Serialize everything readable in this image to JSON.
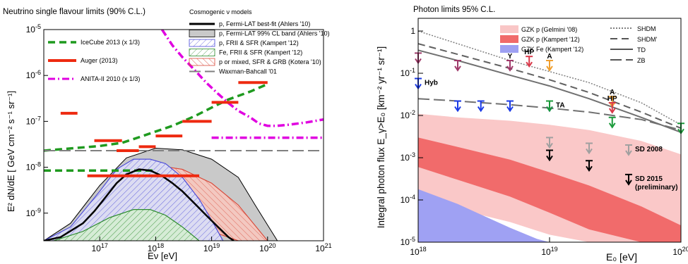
{
  "chart_data": [
    {
      "type": "line",
      "title": "Neutrino single flavour limits (90% C.L.)",
      "xlabel": "Eν [eV]",
      "ylabel": "E² dN/dE [ GeV cm⁻² s⁻¹ sr⁻¹]",
      "log_x": true,
      "log_y": true,
      "xlim": [
        1e+16,
        1e+21
      ],
      "ylim": [
        2.5e-10,
        1e-05
      ],
      "x_ticks": [
        {
          "v": 1e+17,
          "t": "10^17"
        },
        {
          "v": 1e+18,
          "t": "10^18"
        },
        {
          "v": 1e+19,
          "t": "10^19"
        },
        {
          "v": 1e+20,
          "t": "10^20"
        },
        {
          "v": 1e+21,
          "t": "10^21"
        }
      ],
      "y_ticks": [
        {
          "v": 1e-09,
          "t": "10^-9"
        },
        {
          "v": 1e-08,
          "t": "10^-8"
        },
        {
          "v": 1e-07,
          "t": "10^-7"
        },
        {
          "v": 1e-06,
          "t": "10^-6"
        },
        {
          "v": 1e-05,
          "t": "10^-5"
        }
      ],
      "legend_experiments": [
        "IceCube 2013 (x 1/3)",
        "Auger (2013)",
        "ANITA-II 2010 (x 1/3)"
      ],
      "legend_models_title": "Cosmogenic ν models",
      "legend_models": [
        "p, Fermi-LAT best-fit (Ahlers '10)",
        "p, Fermi-LAT 99% CL band (Ahlers '10)",
        "p, FRII & SFR (Kampert '12)",
        "Fe, FRII & SFR (Kampert '12)",
        "p or mixed, SFR & GRB (Kotera '10)",
        "Waxman-Bahcall '01"
      ],
      "series": [
        {
          "name": "IceCube 2013 (x 1/3)",
          "color": "#1f9a1f",
          "style": "dashed",
          "x": [
            1e+16,
            1e+17,
            2.5e+17,
            5e+17,
            1e+18,
            2e+18,
            5e+18,
            1e+19,
            2e+19,
            5e+19,
            1e+20
          ],
          "y": [
            2.3e-08,
            2.9e-08,
            3.4e-08,
            4.5e-08,
            6e-08,
            8e-08,
            1.3e-07,
            2e-07,
            3e-07,
            4.5e-07,
            6.5e-07
          ]
        },
        {
          "name": "IceCube 2013 (x 1/3)",
          "color": "#1f9a1f",
          "style": "dashed",
          "x": [
            1e+16,
            3e+16,
            1e+17,
            3e+17,
            1e+18
          ],
          "y": [
            8.5e-09,
            8.5e-09,
            8.5e-09,
            8.5e-09,
            8.5e-09
          ]
        },
        {
          "name": "ANITA-II 2010 (x 1/3)",
          "color": "#e000e0",
          "style": "dashdot",
          "x": [
            1.3e+18,
            2e+18,
            3e+18,
            5e+18,
            8e+18,
            1.3e+19,
            2e+19,
            3e+19,
            5e+19,
            7e+19,
            1e+20,
            1.5e+20,
            2.5e+20,
            5e+20,
            1e+21
          ],
          "y": [
            1e-05,
            4.5e-06,
            2.5e-06,
            1.3e-06,
            7e-07,
            4e-07,
            2.5e-07,
            1.7e-07,
            1.2e-07,
            9e-08,
            8e-08,
            8e-08,
            8.5e-08,
            9.5e-08,
            1.1e-07
          ]
        },
        {
          "name": "ANITA-II 2010 (x 1/3)",
          "color": "#e000e0",
          "style": "dashdot",
          "x": [
            1e+19,
            1e+21
          ],
          "y": [
            4.4e-08,
            4.4e-08
          ]
        },
        {
          "name": "Waxman-Bahcall '01",
          "color": "#808080",
          "style": "longdash",
          "x": [
            1e+16,
            1e+21
          ],
          "y": [
            2.3e-08,
            2.3e-08
          ]
        },
        {
          "name": "p, Fermi-LAT best-fit (Ahlers '10)",
          "color": "#000000",
          "style": "solid",
          "x": [
            1e+16,
            2e+16,
            5e+16,
            8e+16,
            1.3e+17,
            2e+17,
            3e+17,
            5e+17,
            8e+17,
            1.3e+18,
            2e+18,
            3e+18,
            5e+18,
            8e+18,
            1.3e+19,
            2e+19,
            2.5e+19
          ],
          "y": [
            2.5e-10,
            3e-10,
            6e-10,
            1.1e-09,
            2.3e-09,
            4.5e-09,
            7e-09,
            9e-09,
            8.5e-09,
            6.5e-09,
            4.5e-09,
            3e-09,
            1.6e-09,
            9e-10,
            5e-10,
            3e-10,
            2.5e-10
          ]
        }
      ],
      "bands": [
        {
          "name": "p, Fermi-LAT 99% CL band (Ahlers '10)",
          "fill": "#c9c9c9",
          "stroke": "#000000",
          "x": [
            1e+16,
            3e+16,
            1e+17,
            3e+17,
            1e+18,
            3e+18,
            1e+19,
            3e+19,
            6e+19,
            1.5e+20
          ],
          "upper": [
            2.5e-10,
            6e-10,
            4e-09,
            1.6e-08,
            2.6e-08,
            2.4e-08,
            1.5e-08,
            6e-09,
            1.5e-09,
            2.5e-10
          ],
          "lower": [
            2.5e-10,
            2.5e-10,
            2.5e-10,
            2.5e-10,
            2.5e-10,
            2.5e-10,
            2.5e-10,
            2.5e-10,
            2.5e-10,
            2.5e-10
          ]
        },
        {
          "name": "p or mixed, SFR & GRB (Kotera '10)",
          "fill": "#f3c8c0",
          "stroke": "#d94a3a",
          "x": [
            1e+16,
            3e+16,
            1e+17,
            3e+17,
            1e+18,
            3e+18,
            1e+19,
            3e+19,
            1e+20
          ],
          "upper": [
            2.5e-10,
            4e-10,
            3e-09,
            8e-09,
            1.1e-08,
            9e-09,
            4.5e-09,
            1.5e-09,
            2.5e-10
          ],
          "lower": [
            2.5e-10,
            2.5e-10,
            3e-10,
            6e-10,
            8e-10,
            6e-10,
            4e-10,
            2.5e-10,
            2.5e-10
          ]
        },
        {
          "name": "p, FRII & SFR (Kampert '12)",
          "fill": "#dcdcf2",
          "stroke": "#4a4ad9",
          "x": [
            1e+16,
            3e+16,
            1e+17,
            2e+17,
            4e+17,
            8e+17,
            1.5e+18,
            3e+18,
            6e+18,
            1e+19,
            1.6e+19
          ],
          "upper": [
            2.5e-10,
            5e-10,
            3e-09,
            9e-09,
            1.5e-08,
            1.5e-08,
            1.2e-08,
            6e-09,
            2e-09,
            7e-10,
            2.5e-10
          ],
          "lower": [
            2.5e-10,
            2.5e-10,
            2.5e-10,
            2.5e-10,
            2.5e-10,
            2.5e-10,
            2.5e-10,
            2.5e-10,
            2.5e-10,
            2.5e-10,
            2.5e-10
          ]
        },
        {
          "name": "Fe, FRII & SFR (Kampert '12)",
          "fill": "#d6ecd6",
          "stroke": "#2a8a2a",
          "x": [
            1.5e+16,
            5e+16,
            1.5e+17,
            4e+17,
            8e+17,
            1.5e+18,
            3e+18,
            6e+18
          ],
          "upper": [
            2.5e-10,
            4e-10,
            8e-10,
            1.2e-09,
            1.2e-09,
            9e-10,
            5e-10,
            2.5e-10
          ],
          "lower": [
            2.5e-10,
            2.5e-10,
            2.5e-10,
            2.5e-10,
            2.5e-10,
            2.5e-10,
            2.5e-10,
            2.5e-10
          ]
        }
      ],
      "segments": [
        {
          "name": "Auger (2013)",
          "color": "#ee2a10",
          "pts": [
            [
              2e+16,
              1.5e-07,
              4e+16
            ],
            [
              8e+16,
              3.8e-08,
              2.5e+17
            ],
            [
              2e+17,
              2.3e-08,
              5e+17
            ],
            [
              5e+17,
              2.8e-08,
              1e+18
            ],
            [
              1e+18,
              4.8e-08,
              3e+18
            ],
            [
              3e+18,
              1e-07,
              1e+19
            ],
            [
              1e+19,
              2.6e-07,
              3e+19
            ],
            [
              3e+19,
              7e-07,
              1e+20
            ],
            [
              6e+16,
              6.5e-09,
              6e+18
            ]
          ]
        }
      ]
    },
    {
      "type": "line",
      "title": "Photon limits 95% C.L.",
      "xlabel": "E₀ [eV]",
      "ylabel": "Integral photon flux E_γ>E₀ [km⁻² yr⁻¹ sr⁻¹]",
      "log_x": true,
      "log_y": true,
      "xlim": [
        1e+18,
        1e+20
      ],
      "ylim": [
        1e-05,
        2
      ],
      "x_ticks": [
        {
          "v": 1e+18,
          "t": "10^18"
        },
        {
          "v": 1e+19,
          "t": "10^19"
        },
        {
          "v": 1e+20,
          "t": "10^20"
        }
      ],
      "y_ticks": [
        {
          "v": 1e-05,
          "t": "10^-5"
        },
        {
          "v": 0.0001,
          "t": "10^-4"
        },
        {
          "v": 0.001,
          "t": "10^-3"
        },
        {
          "v": 0.01,
          "t": "10^-2"
        },
        {
          "v": 0.1,
          "t": "10^-1"
        },
        {
          "v": 1,
          "t": "1"
        }
      ],
      "legend_bands": [
        {
          "label": "GZK p (Gelmini '08)",
          "color": "#f9c6c6"
        },
        {
          "label": "GZK p (Kampert '12)",
          "color": "#f06a6a"
        },
        {
          "label": "GZK Fe (Kampert '12)",
          "color": "#9ea0f2"
        }
      ],
      "legend_lines": [
        {
          "label": "SHDM",
          "style": "dotted"
        },
        {
          "label": "SHDM'",
          "style": "dashed"
        },
        {
          "label": "TD",
          "style": "solid"
        },
        {
          "label": "ZB",
          "style": "longdash"
        }
      ],
      "bands": [
        {
          "name": "GZK p (Gelmini '08)",
          "fill": "#fac8c8",
          "x": [
            1e+18,
            2e+18,
            5e+18,
            1e+19,
            2e+19,
            5e+19,
            1e+20
          ],
          "upper": [
            0.011,
            0.009,
            0.0075,
            0.006,
            0.0045,
            0.0025,
            0.0012
          ],
          "lower": [
            0.00012,
            6e-05,
            3e-05,
            1.5e-05,
            1e-05,
            1e-05,
            1e-05
          ]
        },
        {
          "name": "GZK p (Kampert '12)",
          "fill": "#f16b6b",
          "x": [
            1e+18,
            2e+18,
            5e+18,
            1e+19,
            2e+19,
            5e+19,
            1e+20
          ],
          "upper": [
            0.003,
            0.0018,
            0.0009,
            0.00045,
            0.00022,
            7e-05,
            2.5e-05
          ],
          "lower": [
            0.0006,
            0.0003,
            0.00012,
            5e-05,
            2e-05,
            1e-05,
            1e-05
          ]
        },
        {
          "name": "GZK Fe (Kampert '12)",
          "fill": "#9fa1f3",
          "x": [
            1e+18,
            2e+18,
            3e+18,
            5e+18,
            8e+18,
            1e+19
          ],
          "upper": [
            0.00018,
            8e-05,
            4.5e-05,
            2.2e-05,
            1.2e-05,
            1e-05
          ],
          "lower": [
            1e-05,
            1e-05,
            1e-05,
            1e-05,
            1e-05,
            1e-05
          ]
        }
      ],
      "series": [
        {
          "name": "SHDM",
          "color": "#808080",
          "style": "dotted",
          "x": [
            1e+18,
            2e+18,
            5e+18,
            1e+19,
            2e+19,
            5e+19,
            1e+20
          ],
          "y": [
            1.0,
            0.5,
            0.2,
            0.11,
            0.06,
            0.02,
            0.006
          ]
        },
        {
          "name": "SHDM'",
          "color": "#606060",
          "style": "dashed",
          "x": [
            1e+18,
            2e+18,
            5e+18,
            1e+19,
            2e+19,
            5e+19,
            1e+20
          ],
          "y": [
            0.5,
            0.28,
            0.13,
            0.07,
            0.035,
            0.012,
            0.005
          ]
        },
        {
          "name": "TD",
          "color": "#707070",
          "style": "solid",
          "x": [
            1e+18,
            2e+18,
            5e+18,
            1e+19,
            2e+19,
            5e+19,
            1e+20
          ],
          "y": [
            0.35,
            0.2,
            0.09,
            0.05,
            0.025,
            0.009,
            0.004
          ]
        },
        {
          "name": "ZB",
          "color": "#707070",
          "style": "longdash",
          "x": [
            1e+18,
            2e+18,
            5e+18,
            1e+19,
            2e+19,
            5e+19,
            1e+20
          ],
          "y": [
            0.025,
            0.022,
            0.018,
            0.015,
            0.012,
            0.008,
            0.0045
          ]
        }
      ],
      "limits": [
        {
          "x": 1e+18,
          "y": 0.3,
          "color": "#a03a6a",
          "label": ""
        },
        {
          "x": 1e+18,
          "y": 0.075,
          "color": "#1a3ae6",
          "label": "Hyb"
        },
        {
          "x": 2e+18,
          "y": 0.2,
          "color": "#a03a6a",
          "label": ""
        },
        {
          "x": 2e+18,
          "y": 0.022,
          "color": "#1a3ae6",
          "label": ""
        },
        {
          "x": 3e+18,
          "y": 0.022,
          "color": "#1a3ae6",
          "label": ""
        },
        {
          "x": 5e+18,
          "y": 0.022,
          "color": "#1a3ae6",
          "label": ""
        },
        {
          "x": 5e+18,
          "y": 0.2,
          "color": "#a03a6a",
          "label": "Y"
        },
        {
          "x": 7e+18,
          "y": 0.25,
          "color": "#d9394a",
          "label": "HP"
        },
        {
          "x": 1e+19,
          "y": 0.2,
          "color": "#f0a030",
          "label": "A"
        },
        {
          "x": 1e+19,
          "y": 0.022,
          "color": "#1a3ae6",
          "label": ""
        },
        {
          "x": 1e+19,
          "y": 0.022,
          "color": "#1a9a3a",
          "label": "TA"
        },
        {
          "x": 1e+19,
          "y": 0.003,
          "color": "#a0a0a0",
          "label": ""
        },
        {
          "x": 1e+19,
          "y": 0.0015,
          "color": "#000000",
          "label": ""
        },
        {
          "x": 2e+19,
          "y": 0.0022,
          "color": "#a0a0a0",
          "label": ""
        },
        {
          "x": 2e+19,
          "y": 0.00085,
          "color": "#000000",
          "label": ""
        },
        {
          "x": 3e+19,
          "y": 0.028,
          "color": "#f0a030",
          "label": "A"
        },
        {
          "x": 3e+19,
          "y": 0.02,
          "color": "#d9394a",
          "label": "HP"
        },
        {
          "x": 3e+19,
          "y": 0.009,
          "color": "#1a9a3a",
          "label": ""
        },
        {
          "x": 4e+19,
          "y": 0.002,
          "color": "#a0a0a0",
          "label": "SD 2008"
        },
        {
          "x": 4e+19,
          "y": 0.0004,
          "color": "#000000",
          "label": "SD 2015"
        },
        {
          "x": 1e+20,
          "y": 0.0065,
          "color": "#1a9a3a",
          "label": ""
        }
      ],
      "annotations": [
        "(preliminary)"
      ]
    }
  ]
}
